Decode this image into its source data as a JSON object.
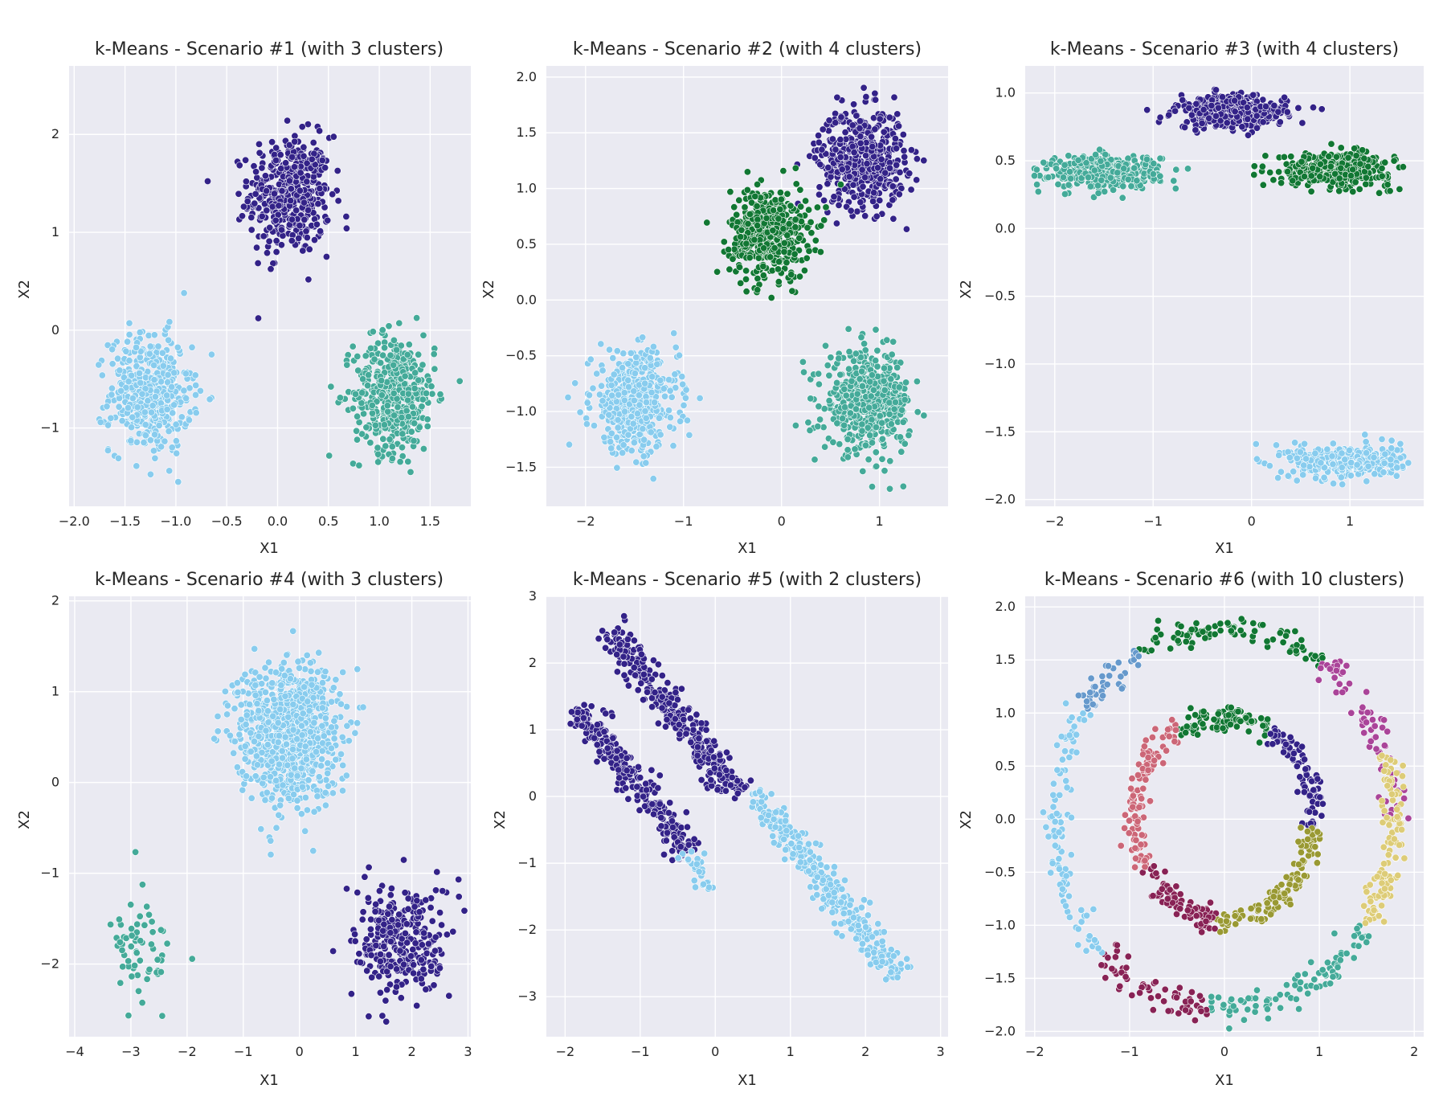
{
  "palette": {
    "indigo": "#332288",
    "green": "#117733",
    "teal": "#44aa99",
    "cyan": "#88ccee",
    "sand": "#ddcc77",
    "olive": "#999933",
    "rose": "#cc6677",
    "wine": "#882255",
    "purple": "#aa4499",
    "blue": "#6699cc"
  },
  "chart_data": [
    {
      "type": "scatter",
      "title": "k-Means - Scenario #1 (with 3 clusters)",
      "xlabel": "X1",
      "ylabel": "X2",
      "xlim": [
        -2.05,
        1.9
      ],
      "ylim": [
        -1.8,
        2.7
      ],
      "xticks": [
        -2.0,
        -1.5,
        -1.0,
        -0.5,
        0.0,
        0.5,
        1.0,
        1.5
      ],
      "yticks": [
        -1,
        0,
        1,
        2
      ],
      "xtick_labels": [
        "−2.0",
        "−1.5",
        "−1.0",
        "−0.5",
        "0.0",
        "0.5",
        "1.0",
        "1.5"
      ],
      "ytick_labels": [
        "−1",
        "0",
        "1",
        "2"
      ],
      "grid": true,
      "clusters": [
        {
          "color": "indigo",
          "center": [
            0.12,
            1.38
          ],
          "spread": [
            0.2,
            0.3
          ],
          "count": 450
        },
        {
          "color": "cyan",
          "center": [
            -1.25,
            -0.65
          ],
          "spread": [
            0.2,
            0.3
          ],
          "count": 450
        },
        {
          "color": "teal",
          "center": [
            1.15,
            -0.65
          ],
          "spread": [
            0.2,
            0.3
          ],
          "count": 450
        }
      ]
    },
    {
      "type": "scatter",
      "title": "k-Means - Scenario #2 (with 4 clusters)",
      "xlabel": "X1",
      "ylabel": "X2",
      "xlim": [
        -2.4,
        1.7
      ],
      "ylim": [
        -1.85,
        2.1
      ],
      "xticks": [
        -2,
        -1,
        0,
        1
      ],
      "yticks": [
        -1.5,
        -1.0,
        -0.5,
        0.0,
        0.5,
        1.0,
        1.5,
        2.0
      ],
      "xtick_labels": [
        "−2",
        "−1",
        "0",
        "1"
      ],
      "ytick_labels": [
        "−1.5",
        "−1.0",
        "−0.5",
        "0.0",
        "0.5",
        "1.0",
        "1.5",
        "2.0"
      ],
      "grid": true,
      "clusters": [
        {
          "color": "indigo",
          "center": [
            0.82,
            1.27
          ],
          "spread": [
            0.22,
            0.22
          ],
          "count": 500
        },
        {
          "color": "green",
          "center": [
            -0.12,
            0.6
          ],
          "spread": [
            0.2,
            0.2
          ],
          "count": 500
        },
        {
          "color": "cyan",
          "center": [
            -1.5,
            -0.92
          ],
          "spread": [
            0.22,
            0.22
          ],
          "count": 500
        },
        {
          "color": "teal",
          "center": [
            0.88,
            -0.92
          ],
          "spread": [
            0.22,
            0.22
          ],
          "count": 500
        }
      ]
    },
    {
      "type": "scatter",
      "title": "k-Means - Scenario #3 (with 4 clusters)",
      "xlabel": "X1",
      "ylabel": "X2",
      "xlim": [
        -2.3,
        1.75
      ],
      "ylim": [
        -2.05,
        1.2
      ],
      "xticks": [
        -2,
        -1,
        0,
        1
      ],
      "yticks": [
        -2.0,
        -1.5,
        -1.0,
        -0.5,
        0.0,
        0.5,
        1.0
      ],
      "xtick_labels": [
        "−2",
        "−1",
        "0",
        "1"
      ],
      "ytick_labels": [
        "−2.0",
        "−1.5",
        "−1.0",
        "−0.5",
        "0.0",
        "0.5",
        "1.0"
      ],
      "grid": true,
      "clusters": [
        {
          "color": "teal",
          "center": [
            -1.5,
            0.42
          ],
          "spread": [
            0.28,
            0.06
          ],
          "count": 400
        },
        {
          "color": "indigo",
          "center": [
            -0.2,
            0.86
          ],
          "spread": [
            0.28,
            0.06
          ],
          "count": 400
        },
        {
          "color": "green",
          "center": [
            0.85,
            0.44
          ],
          "spread": [
            0.28,
            0.06
          ],
          "count": 400
        },
        {
          "color": "cyan",
          "center": [
            0.95,
            -1.72
          ],
          "spread": [
            0.28,
            0.06
          ],
          "count": 400
        }
      ]
    },
    {
      "type": "scatter",
      "title": "k-Means - Scenario #4 (with 3 clusters)",
      "xlabel": "X1",
      "ylabel": "X2",
      "xlim": [
        -4.1,
        3.05
      ],
      "ylim": [
        -2.8,
        2.05
      ],
      "xticks": [
        -4,
        -3,
        -2,
        -1,
        0,
        1,
        2,
        3
      ],
      "yticks": [
        -2,
        -1,
        0,
        1,
        2
      ],
      "xtick_labels": [
        "−4",
        "−3",
        "−2",
        "−1",
        "0",
        "1",
        "2",
        "3"
      ],
      "ytick_labels": [
        "−2",
        "−1",
        "0",
        "1",
        "2"
      ],
      "grid": true,
      "clusters": [
        {
          "color": "cyan",
          "center": [
            -0.2,
            0.55
          ],
          "spread": [
            0.45,
            0.38
          ],
          "count": 900
        },
        {
          "color": "indigo",
          "center": [
            1.85,
            -1.75
          ],
          "spread": [
            0.42,
            0.32
          ],
          "count": 300
        },
        {
          "color": "teal",
          "center": [
            -2.8,
            -1.9
          ],
          "spread": [
            0.28,
            0.3
          ],
          "count": 60
        }
      ]
    },
    {
      "type": "scatter",
      "title": "k-Means - Scenario #5 (with 2 clusters)",
      "xlabel": "X1",
      "ylabel": "X2",
      "xlim": [
        -2.25,
        3.1
      ],
      "ylim": [
        -3.6,
        3.0
      ],
      "xticks": [
        -2,
        -1,
        0,
        1,
        2,
        3
      ],
      "yticks": [
        -3,
        -2,
        -1,
        0,
        1,
        2,
        3
      ],
      "xtick_labels": [
        "−2",
        "−1",
        "0",
        "1",
        "2",
        "3"
      ],
      "ytick_labels": [
        "−3",
        "−2",
        "−1",
        "0",
        "1",
        "2",
        "3"
      ],
      "grid": true,
      "bands": [
        {
          "color": "indigo",
          "from": [
            -1.85,
            1.35
          ],
          "to": [
            -0.35,
            -0.85
          ],
          "spread": 0.1,
          "count": 280
        },
        {
          "color": "indigo",
          "from": [
            -1.45,
            2.55
          ],
          "to": [
            0.3,
            0.0
          ],
          "spread": 0.1,
          "count": 340
        },
        {
          "color": "cyan",
          "from": [
            -0.4,
            -0.8
          ],
          "to": [
            -0.05,
            -1.4
          ],
          "spread": 0.08,
          "count": 30
        },
        {
          "color": "cyan",
          "from": [
            0.5,
            0.05
          ],
          "to": [
            2.45,
            -2.7
          ],
          "spread": 0.1,
          "count": 330
        }
      ]
    },
    {
      "type": "scatter",
      "title": "k-Means - Scenario #6 (with 10 clusters)",
      "xlabel": "X1",
      "ylabel": "X2",
      "xlim": [
        -2.1,
        2.1
      ],
      "ylim": [
        -2.05,
        2.1
      ],
      "xticks": [
        -2,
        -1,
        0,
        1,
        2
      ],
      "yticks": [
        -2.0,
        -1.5,
        -1.0,
        -0.5,
        0.0,
        0.5,
        1.0,
        1.5,
        2.0
      ],
      "xtick_labels": [
        "−2",
        "−1",
        "0",
        "1",
        "2"
      ],
      "ytick_labels": [
        "−2.0",
        "−1.5",
        "−1.0",
        "−0.5",
        "0.0",
        "0.5",
        "1.0",
        "1.5",
        "2.0"
      ],
      "grid": true,
      "rings": [
        {
          "radius": 1.8,
          "noise": 0.07,
          "segments": [
            {
              "color": "green",
              "from": 55,
              "to": 120,
              "count": 90
            },
            {
              "color": "purple",
              "from": 0,
              "to": 55,
              "count": 70
            },
            {
              "color": "sand",
              "from": -35,
              "to": 0,
              "count": 80
            },
            {
              "color": "sand",
              "from": 0,
              "to": 20,
              "count": 40
            },
            {
              "color": "teal",
              "from": -95,
              "to": -35,
              "count": 90
            },
            {
              "color": "wine",
              "from": -135,
              "to": -95,
              "count": 60
            },
            {
              "color": "cyan",
              "from": -215,
              "to": -135,
              "count": 100
            },
            {
              "color": "blue",
              "from": -240,
              "to": -215,
              "count": 40
            }
          ]
        },
        {
          "radius": 0.95,
          "noise": 0.06,
          "segments": [
            {
              "color": "green",
              "from": 60,
              "to": 120,
              "count": 90
            },
            {
              "color": "indigo",
              "from": -5,
              "to": 60,
              "count": 90
            },
            {
              "color": "olive",
              "from": -95,
              "to": -5,
              "count": 110
            },
            {
              "color": "wine",
              "from": -150,
              "to": -95,
              "count": 80
            },
            {
              "color": "rose",
              "from": -240,
              "to": -150,
              "count": 110
            }
          ]
        }
      ]
    }
  ]
}
